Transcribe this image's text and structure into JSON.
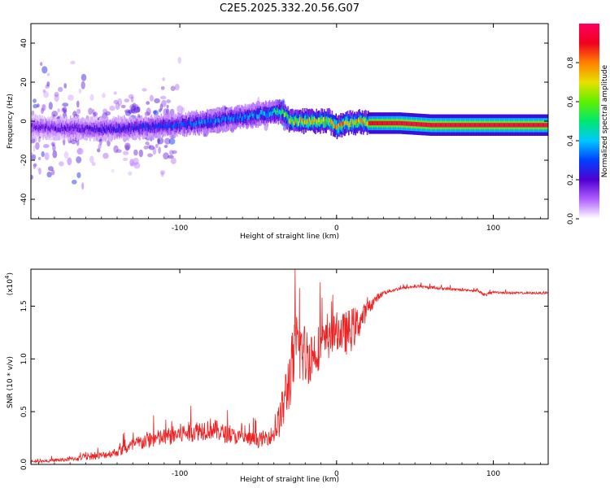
{
  "title": "C2E5.2025.332.20.56.G07",
  "chart_data": [
    {
      "type": "heatmap",
      "xlabel": "Height of straight line (km)",
      "ylabel": "Frequency (Hz)",
      "xlim": [
        -195,
        135
      ],
      "ylim": [
        -50,
        50
      ],
      "xticks": [
        "-100",
        "0",
        "100"
      ],
      "xtick_values": [
        -100,
        0,
        100
      ],
      "yticks": [
        "-40",
        "-20",
        "0",
        "20",
        "40"
      ],
      "ytick_values": [
        -40,
        -20,
        0,
        20,
        40
      ],
      "colorbar": {
        "label": "Normalized spectral amplitude",
        "range": [
          0,
          1
        ],
        "ticks": [
          "0.0",
          "0.2",
          "0.4",
          "0.6",
          "0.8"
        ],
        "tick_values": [
          0.0,
          0.2,
          0.4,
          0.6,
          0.8
        ],
        "colors": [
          "#ffffff",
          "#b060ff",
          "#5000d0",
          "#0040ff",
          "#00c8ff",
          "#00e870",
          "#60f000",
          "#e8e000",
          "#ff8000",
          "#f00020",
          "#ff0060"
        ]
      },
      "ridge": {
        "x": [
          -195,
          -150,
          -120,
          -100,
          -80,
          -60,
          -45,
          -35,
          -30,
          -20,
          -10,
          -5,
          0,
          5,
          10,
          15,
          20,
          40,
          60,
          80,
          100,
          120,
          135
        ],
        "y": [
          -3,
          -4,
          -3,
          -2,
          0,
          2,
          4,
          5,
          0,
          0,
          0,
          0,
          -3,
          -1,
          -1,
          0,
          -1,
          -1,
          -2,
          -2,
          -2,
          -2,
          -2
        ],
        "amplitude": [
          0.2,
          0.25,
          0.3,
          0.35,
          0.4,
          0.4,
          0.45,
          0.6,
          0.8,
          0.85,
          0.85,
          0.8,
          0.9,
          0.85,
          0.85,
          0.85,
          0.9,
          0.95,
          0.95,
          0.95,
          0.95,
          0.95,
          0.95
        ]
      }
    },
    {
      "type": "line",
      "xlabel": "Height of straight line (km)",
      "ylabel": "SNR (10 * v/v)",
      "scale_note": "(x10",
      "scale_exp": "4",
      "scale_close": ")",
      "xlim": [
        -195,
        135
      ],
      "ylim": [
        0,
        1.85
      ],
      "xticks": [
        "-100",
        "0",
        "100"
      ],
      "xtick_values": [
        -100,
        0,
        100
      ],
      "yticks": [
        "0.0",
        "0.5",
        "1.0",
        "1.5"
      ],
      "ytick_values": [
        0.0,
        0.5,
        1.0,
        1.5
      ],
      "color": "#ee2222",
      "series": [
        {
          "name": "SNR",
          "x": [
            -195,
            -170,
            -150,
            -140,
            -130,
            -120,
            -110,
            -100,
            -90,
            -80,
            -70,
            -60,
            -50,
            -40,
            -35,
            -30,
            -25,
            -20,
            -15,
            -10,
            -5,
            0,
            5,
            10,
            15,
            20,
            25,
            30,
            40,
            50,
            60,
            70,
            80,
            90,
            95,
            100,
            110,
            120,
            135
          ],
          "y": [
            0.02,
            0.04,
            0.07,
            0.1,
            0.15,
            0.2,
            0.22,
            0.25,
            0.28,
            0.3,
            0.25,
            0.22,
            0.2,
            0.25,
            0.4,
            0.7,
            1.0,
            0.9,
            0.95,
            1.05,
            1.1,
            1.2,
            1.15,
            1.2,
            1.3,
            1.45,
            1.55,
            1.62,
            1.66,
            1.68,
            1.67,
            1.66,
            1.65,
            1.64,
            1.6,
            1.63,
            1.62,
            1.62,
            1.62
          ],
          "noise": [
            0.01,
            0.03,
            0.05,
            0.06,
            0.1,
            0.12,
            0.12,
            0.14,
            0.14,
            0.15,
            0.12,
            0.1,
            0.1,
            0.12,
            0.3,
            0.45,
            0.5,
            0.45,
            0.35,
            0.3,
            0.25,
            0.25,
            0.3,
            0.3,
            0.2,
            0.1,
            0.06,
            0.03,
            0.02,
            0.02,
            0.02,
            0.02,
            0.015,
            0.015,
            0.02,
            0.015,
            0.015,
            0.015,
            0.015
          ]
        }
      ]
    }
  ]
}
